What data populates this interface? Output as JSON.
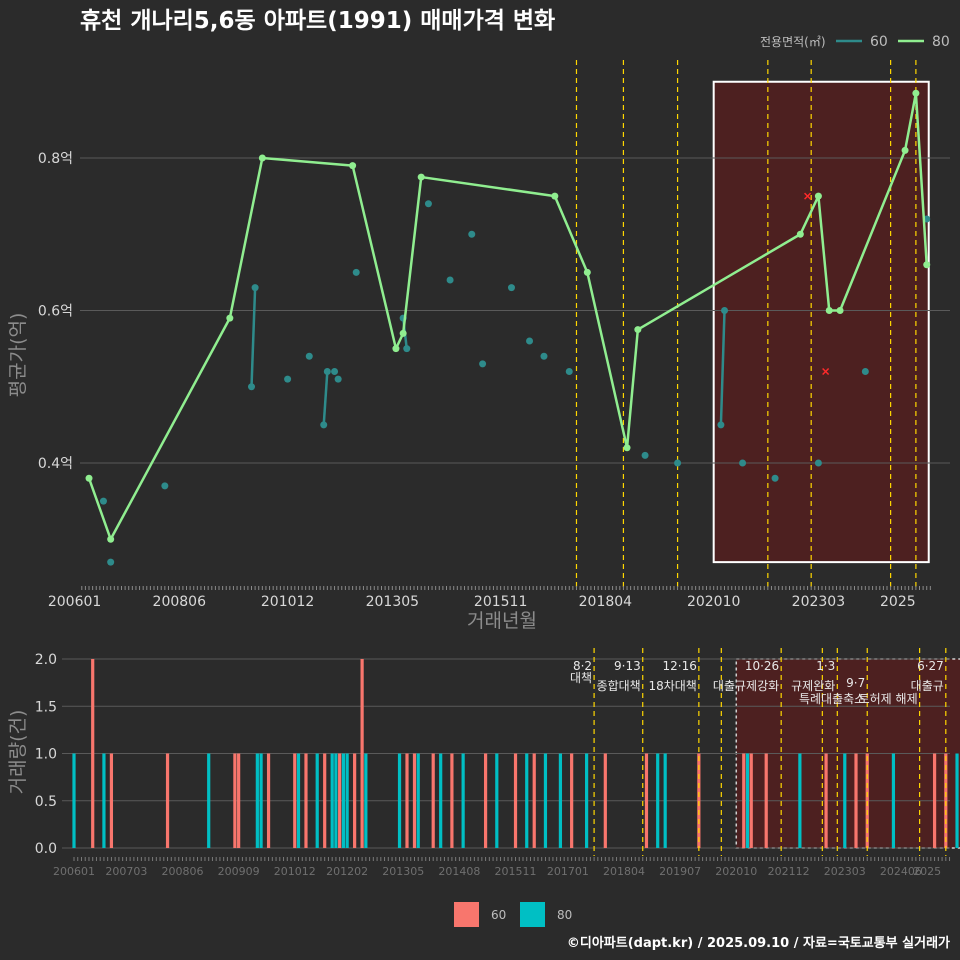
{
  "title": "휴천 개나리5,6동 아파트(1991) 매매가격 변화",
  "caption": "©디아파트(dapt.kr) / 2025.09.10 / 자료=국토교통부 실거래가",
  "colors": {
    "background": "#2b2b2b",
    "s60_price": "#2e8b8b",
    "s80_price": "#90ee90",
    "s60_vol": "#00bfc4",
    "s80_vol": "#f8766d",
    "event_line": "#ffd700",
    "highlight_fill": "#5a1e1e",
    "highlight_border": "#ffffff"
  },
  "chart_data": [
    {
      "type": "line",
      "title": "휴천 개나리5,6동 아파트(1991) 매매가격 변화",
      "xlabel": "거래년월",
      "ylabel": "평균가(억)",
      "x_ticks": [
        "200601",
        "200806",
        "201012",
        "201305",
        "201511",
        "201804",
        "202010",
        "202303",
        "2025"
      ],
      "y_ticks": [
        "0.4억",
        "0.6억",
        "0.8억"
      ],
      "ylim": [
        0.25,
        0.9
      ],
      "legend": {
        "title": "전용면적(㎡)",
        "entries": [
          "60",
          "80"
        ],
        "position": "top-right"
      },
      "series": [
        {
          "name": "60",
          "points": [
            [
              "2006-09",
              0.35
            ],
            [
              "2006-11",
              0.27
            ],
            [
              "2008-02",
              0.37
            ],
            [
              "2010-02",
              0.5
            ],
            [
              "2010-03",
              0.63
            ],
            [
              "2010-12",
              0.51
            ],
            [
              "2011-06",
              0.54
            ],
            [
              "2011-10",
              0.45
            ],
            [
              "2011-11",
              0.52
            ],
            [
              "2012-01",
              0.52
            ],
            [
              "2012-02",
              0.51
            ],
            [
              "2012-07",
              0.65
            ],
            [
              "2013-08",
              0.59
            ],
            [
              "2013-09",
              0.55
            ],
            [
              "2014-03",
              0.74
            ],
            [
              "2014-09",
              0.64
            ],
            [
              "2015-03",
              0.7
            ],
            [
              "2015-06",
              0.53
            ],
            [
              "2016-02",
              0.63
            ],
            [
              "2016-07",
              0.56
            ],
            [
              "2016-11",
              0.54
            ],
            [
              "2017-06",
              0.52
            ],
            [
              "2019-03",
              0.41
            ],
            [
              "2019-12",
              0.4
            ],
            [
              "2020-12",
              0.45
            ],
            [
              "2021-01",
              0.6
            ],
            [
              "2021-06",
              0.4
            ],
            [
              "2022-03",
              0.38
            ],
            [
              "2023-03",
              0.4
            ],
            [
              "2024-04",
              0.52
            ],
            [
              "2025-09",
              0.72
            ]
          ],
          "connected": [
            [
              "2010-02",
              "2010-03"
            ],
            [
              "2011-10",
              "2011-11"
            ],
            [
              "2013-08",
              "2013-09"
            ],
            [
              "2020-12",
              "2021-01"
            ]
          ]
        },
        {
          "name": "80",
          "points": [
            [
              "2006-05",
              0.38
            ],
            [
              "2006-11",
              0.3
            ],
            [
              "2009-08",
              0.59
            ],
            [
              "2010-05",
              0.8
            ],
            [
              "2012-06",
              0.79
            ],
            [
              "2013-06",
              0.55
            ],
            [
              "2013-08",
              0.57
            ],
            [
              "2014-01",
              0.775
            ],
            [
              "2017-02",
              0.75
            ],
            [
              "2017-11",
              0.65
            ],
            [
              "2018-10",
              0.42
            ],
            [
              "2019-01",
              0.575
            ],
            [
              "2022-10",
              0.7
            ],
            [
              "2023-03",
              0.75
            ],
            [
              "2023-06",
              0.6
            ],
            [
              "2023-09",
              0.6
            ],
            [
              "2025-03",
              0.81
            ],
            [
              "2025-06",
              0.885
            ],
            [
              "2025-09",
              0.66
            ]
          ],
          "cancelled": [
            [
              "2022-12",
              0.75
            ],
            [
              "2023-05",
              0.52
            ]
          ]
        }
      ],
      "events": [
        "2017-08",
        "2018-09",
        "2019-12",
        "2022-01",
        "2023-01",
        "2024-11",
        "2025-06"
      ],
      "highlight": {
        "from": "2020-10",
        "to": "2025-09",
        "ymin": 0.27,
        "ymax": 0.9
      }
    },
    {
      "type": "bar",
      "xlabel": "",
      "ylabel": "거래량(건)",
      "y_ticks": [
        "0.0",
        "0.5",
        "1.0",
        "1.5",
        "2.0"
      ],
      "ylim": [
        0,
        2
      ],
      "x_ticks": [
        "200601",
        "200703",
        "200806",
        "200909",
        "201012",
        "201202",
        "201305",
        "201408",
        "201511",
        "201701",
        "201804",
        "201907",
        "202010",
        "202112",
        "202303",
        "202406",
        "2025"
      ],
      "legend": {
        "entries": [
          "60",
          "80"
        ],
        "position": "bottom"
      },
      "series": [
        {
          "name": "60",
          "bars": [
            [
              "2006-01",
              1
            ],
            [
              "2006-09",
              1
            ],
            [
              "2009-01",
              1
            ],
            [
              "2010-02",
              1
            ],
            [
              "2010-03",
              1
            ],
            [
              "2011-01",
              1
            ],
            [
              "2011-06",
              1
            ],
            [
              "2011-10",
              1
            ],
            [
              "2011-11",
              1
            ],
            [
              "2012-01",
              1
            ],
            [
              "2012-02",
              1
            ],
            [
              "2012-07",
              1
            ],
            [
              "2013-04",
              1
            ],
            [
              "2013-09",
              1
            ],
            [
              "2014-03",
              1
            ],
            [
              "2014-09",
              1
            ],
            [
              "2015-06",
              1
            ],
            [
              "2016-02",
              1
            ],
            [
              "2016-07",
              1
            ],
            [
              "2016-11",
              1
            ],
            [
              "2017-06",
              1
            ],
            [
              "2019-01",
              1
            ],
            [
              "2019-03",
              1
            ],
            [
              "2021-01",
              1
            ],
            [
              "2022-03",
              1
            ],
            [
              "2023-03",
              1
            ],
            [
              "2024-04",
              1
            ],
            [
              "2025-09",
              1
            ]
          ]
        },
        {
          "name": "80",
          "bars": [
            [
              "2006-06",
              2
            ],
            [
              "2006-11",
              1
            ],
            [
              "2008-02",
              1
            ],
            [
              "2009-08",
              1
            ],
            [
              "2009-09",
              1
            ],
            [
              "2010-05",
              1
            ],
            [
              "2010-12",
              1
            ],
            [
              "2011-03",
              1
            ],
            [
              "2011-08",
              1
            ],
            [
              "2011-12",
              1
            ],
            [
              "2012-04",
              1
            ],
            [
              "2012-06",
              2
            ],
            [
              "2013-06",
              1
            ],
            [
              "2013-08",
              1
            ],
            [
              "2014-01",
              1
            ],
            [
              "2014-06",
              1
            ],
            [
              "2015-03",
              1
            ],
            [
              "2015-11",
              1
            ],
            [
              "2016-04",
              1
            ],
            [
              "2017-02",
              1
            ],
            [
              "2017-11",
              1
            ],
            [
              "2018-10",
              1
            ],
            [
              "2019-12",
              1
            ],
            [
              "2020-12",
              1
            ],
            [
              "2021-02",
              1
            ],
            [
              "2021-06",
              1
            ],
            [
              "2022-10",
              1
            ],
            [
              "2023-06",
              1
            ],
            [
              "2023-09",
              1
            ],
            [
              "2025-03",
              1
            ],
            [
              "2025-06",
              1
            ]
          ]
        }
      ],
      "events": [
        {
          "x": "2017-08",
          "date": "8·2",
          "name": "대책"
        },
        {
          "x": "2018-09",
          "date": "9·13",
          "name": "종합대책"
        },
        {
          "x": "2019-12",
          "date": "12·16",
          "name": "18차대책"
        },
        {
          "x": "2020-06",
          "date": "",
          "name": ""
        },
        {
          "x": "2021-10",
          "date": "10·26",
          "name": "대출규제강화"
        },
        {
          "x": "2022-09",
          "date": "",
          "name": ""
        },
        {
          "x": "2023-01",
          "date": "1·3",
          "name": "규제완화"
        },
        {
          "x": "2023-09",
          "date": "9·7",
          "name": "특례대출축소"
        },
        {
          "x": "2024-11",
          "date": "",
          "name": "토허제 해제"
        },
        {
          "x": "2025-06",
          "date": "6·27",
          "name": "대출규"
        }
      ],
      "highlight": {
        "from": "2020-10",
        "to": "2025-09"
      }
    }
  ]
}
